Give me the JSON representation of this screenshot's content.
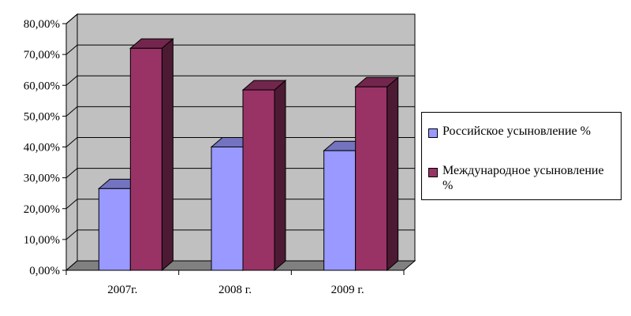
{
  "chart_data": {
    "type": "bar",
    "categories": [
      "2007г.",
      "2008 г.",
      "2009 г."
    ],
    "series": [
      {
        "name": "Российское усыновление %",
        "values": [
          26.5,
          40.0,
          38.8
        ],
        "color": "#9999ff"
      },
      {
        "name": "Международное усыновление %",
        "values": [
          72.0,
          58.5,
          59.5
        ],
        "color": "#993366"
      }
    ],
    "y_ticks": [
      "0,00%",
      "10,00%",
      "20,00%",
      "30,00%",
      "40,00%",
      "50,00%",
      "60,00%",
      "70,00%",
      "80,00%"
    ],
    "ylim": [
      0,
      80
    ],
    "grid": true,
    "legend_position": "right",
    "wall_color": "#c0c0c0",
    "floor_color": "#808080"
  }
}
